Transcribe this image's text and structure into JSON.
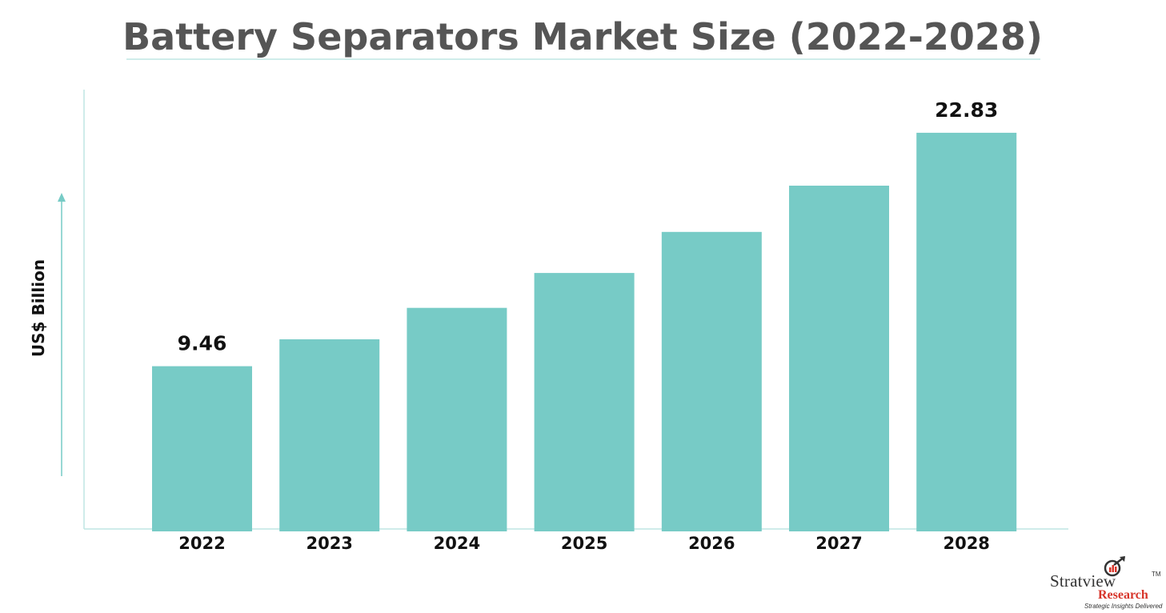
{
  "chart_data": {
    "type": "bar",
    "title": "Battery Separators Market Size (2022-2028)",
    "ylabel": "US$ Billion",
    "xlabel": "",
    "categories": [
      "2022",
      "2023",
      "2024",
      "2025",
      "2026",
      "2027",
      "2028"
    ],
    "values": [
      9.46,
      11.0,
      12.8,
      14.8,
      17.15,
      19.8,
      22.83
    ],
    "data_labels": {
      "0": "9.46",
      "6": "22.83"
    },
    "ylim": [
      0,
      24.2
    ],
    "grid": false,
    "legend": "none",
    "bar_color": "#77cbc6",
    "axis_color": "#bfe6e3"
  },
  "logo": {
    "name": "Stratview",
    "tm": "TM",
    "research": "Research",
    "tagline": "Strategic Insights Delivered"
  }
}
